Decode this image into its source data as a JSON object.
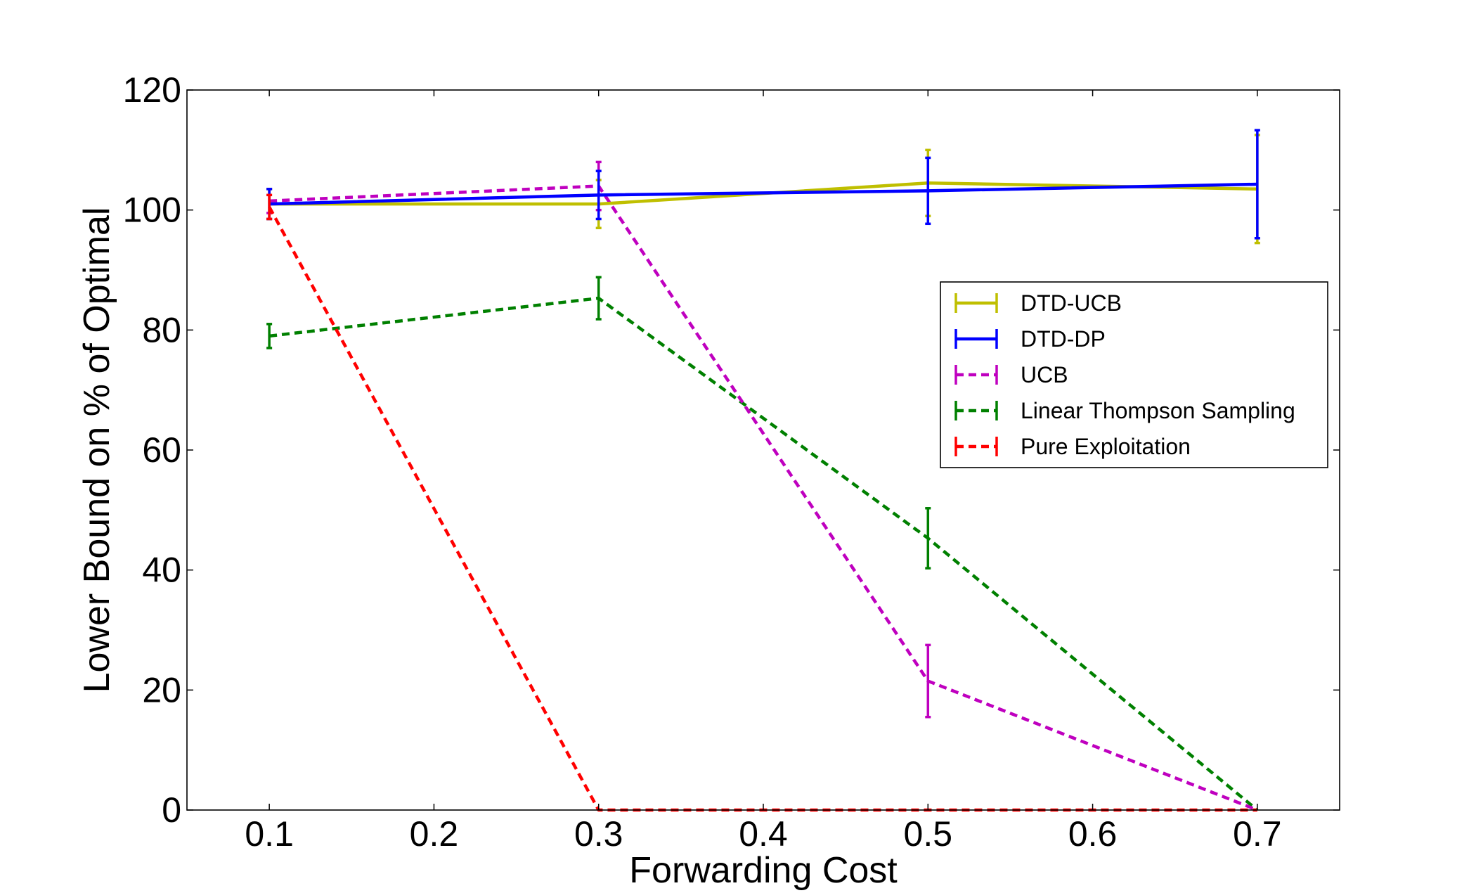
{
  "chart_data": {
    "type": "line",
    "title": "",
    "xlabel": "Forwarding Cost",
    "ylabel": "Lower Bound on % of Optimal",
    "xlim": [
      0.05,
      0.75
    ],
    "ylim": [
      0,
      120
    ],
    "x": [
      0.1,
      0.3,
      0.5,
      0.7
    ],
    "xticks": [
      "0.1",
      "0.2",
      "0.3",
      "0.4",
      "0.5",
      "0.6",
      "0.7"
    ],
    "xtick_values": [
      0.1,
      0.2,
      0.3,
      0.4,
      0.5,
      0.6,
      0.7
    ],
    "yticks": [
      "0",
      "20",
      "40",
      "60",
      "80",
      "100",
      "120"
    ],
    "ytick_values": [
      0,
      20,
      40,
      60,
      80,
      100,
      120
    ],
    "grid": false,
    "legend_position": "center-right",
    "series": [
      {
        "name": "DTD-UCB",
        "color": "#bfbf00",
        "dash": "solid",
        "values": [
          101,
          101,
          104.5,
          103.5
        ],
        "errors": [
          2.5,
          4,
          5.5,
          9
        ]
      },
      {
        "name": "DTD-DP",
        "color": "#0000ff",
        "dash": "solid",
        "values": [
          101,
          102.5,
          103.2,
          104.3
        ],
        "errors": [
          2.5,
          4,
          5.5,
          9
        ]
      },
      {
        "name": "UCB",
        "color": "#bf00bf",
        "dash": "dashed",
        "values": [
          101.5,
          104,
          21.5,
          0
        ],
        "errors": [
          2,
          4,
          6,
          0
        ]
      },
      {
        "name": "Linear Thompson Sampling",
        "color": "#008000",
        "dash": "dashed",
        "values": [
          79,
          85.3,
          45.3,
          0
        ],
        "errors": [
          2,
          3.5,
          5,
          0
        ]
      },
      {
        "name": "Pure Exploitation",
        "color": "#ff0000",
        "dash": "dashed",
        "values": [
          100.5,
          0,
          0,
          0
        ],
        "errors": [
          2,
          0,
          0,
          0
        ]
      }
    ]
  }
}
